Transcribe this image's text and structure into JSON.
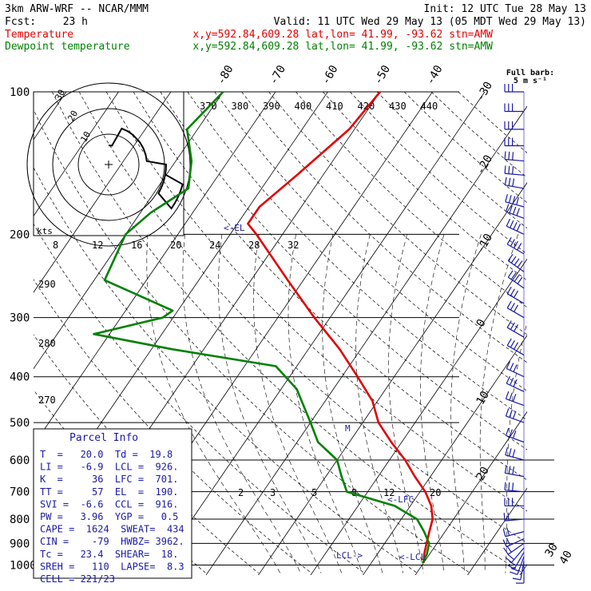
{
  "header": {
    "model": "3km ARW-WRF -- NCAR/MMM",
    "init": "Init: 12 UTC Tue 28 May 13",
    "fcst_label": "Fcst:",
    "fcst_hours": "23 h",
    "valid": "Valid: 11 UTC Wed 29 May 13 (05 MDT Wed 29 May 13)",
    "temp_name": "Temperature",
    "temp_loc": "x,y=592.84,609.28   lat,lon= 41.99, -93.62  stn=AMW",
    "dew_name": "Dewpoint temperature",
    "dew_loc": "x,y=592.84,609.28   lat,lon= 41.99, -93.62  stn=AMW"
  },
  "wind_key": {
    "title": "Full barb:",
    "value": "5 m s⁻¹"
  },
  "hodograph": {
    "units": "kts",
    "ring_labels": [
      "10",
      "20",
      "30"
    ]
  },
  "parcel_info": {
    "title": "Parcel Info",
    "rows": [
      "T  =   20.0  Td =  19.8",
      "LI =   -6.9  LCL =  926.",
      "K  =     36  LFC =  701.",
      "TT =     57  EL  =  190.",
      "SVI =  -6.6  CCL =  916.",
      "PW =   3.96  YGP =   0.5",
      "CAPE =  1624  SWEAT=  434",
      "CIN =    -79  HWBZ= 3962.",
      "Tc =   23.4  SHEAR=  18.",
      "SREH =   110  LAPSE=  8.3",
      "CELL = 221/23"
    ]
  },
  "annotations": {
    "el": "<-EL",
    "lfc": "<-LFC",
    "lcl_left": "LCL->",
    "lcl_right": "<-LCL",
    "m": "M"
  },
  "colors": {
    "temperature": "#e00000",
    "dewpoint": "#008000",
    "parcel": "#000000",
    "annotation": "#1a1aa6",
    "wind": "#1a1aa6"
  },
  "chart_data": {
    "type": "line",
    "title": "",
    "ylabel": "",
    "xlabel": "",
    "y_scale": "log-pressure (hPa)",
    "pressure_levels": [
      100,
      200,
      300,
      400,
      500,
      600,
      700,
      800,
      900,
      1000
    ],
    "temperature_ticks": [
      -80,
      -70,
      -60,
      -50,
      -40,
      -30,
      -20,
      -10,
      0,
      10,
      20,
      30,
      40
    ],
    "theta_ticks": [
      370,
      380,
      390,
      400,
      410,
      420,
      430,
      440
    ],
    "theta_e_ticks": [
      8,
      12,
      16,
      20,
      24,
      28,
      32
    ],
    "theta_e_diag_ticks": [
      290,
      280,
      270
    ],
    "mixing_ratio_ticks": [
      2,
      3,
      5,
      8,
      12,
      20
    ],
    "series": [
      {
        "name": "Temperature",
        "values": [
          [
            100,
            -50
          ],
          [
            120,
            -51
          ],
          [
            150,
            -55
          ],
          [
            175,
            -58
          ],
          [
            190,
            -58
          ],
          [
            200,
            -55
          ],
          [
            250,
            -43
          ],
          [
            300,
            -33
          ],
          [
            350,
            -24
          ],
          [
            400,
            -17
          ],
          [
            450,
            -11
          ],
          [
            500,
            -7
          ],
          [
            550,
            -2
          ],
          [
            600,
            3
          ],
          [
            650,
            7
          ],
          [
            700,
            11
          ],
          [
            750,
            14
          ],
          [
            800,
            16
          ],
          [
            850,
            17
          ],
          [
            900,
            18
          ],
          [
            950,
            19
          ],
          [
            990,
            20
          ]
        ]
      },
      {
        "name": "Dewpoint temperature",
        "values": [
          [
            100,
            -80
          ],
          [
            120,
            -82
          ],
          [
            140,
            -77
          ],
          [
            160,
            -74
          ],
          [
            180,
            -78
          ],
          [
            200,
            -80
          ],
          [
            250,
            -78
          ],
          [
            290,
            -61
          ],
          [
            300,
            -62
          ],
          [
            325,
            -73
          ],
          [
            350,
            -56
          ],
          [
            380,
            -34
          ],
          [
            425,
            -27
          ],
          [
            500,
            -20
          ],
          [
            550,
            -16
          ],
          [
            600,
            -10
          ],
          [
            650,
            -7
          ],
          [
            700,
            -4
          ],
          [
            750,
            7
          ],
          [
            800,
            13
          ],
          [
            850,
            16
          ],
          [
            900,
            18.5
          ],
          [
            950,
            19.5
          ],
          [
            990,
            19.8
          ]
        ]
      }
    ],
    "parcel_trace": [
      [
        990,
        20
      ],
      [
        926,
        19
      ],
      [
        850,
        18
      ],
      [
        780,
        16
      ],
      [
        701,
        14
      ]
    ],
    "wind_barbs": [
      {
        "p": 100,
        "dir": 270,
        "spd": 15
      },
      {
        "p": 110,
        "dir": 270,
        "spd": 15
      },
      {
        "p": 120,
        "dir": 270,
        "spd": 15
      },
      {
        "p": 130,
        "dir": 270,
        "spd": 15
      },
      {
        "p": 140,
        "dir": 275,
        "spd": 15
      },
      {
        "p": 150,
        "dir": 275,
        "spd": 15
      },
      {
        "p": 160,
        "dir": 280,
        "spd": 15
      },
      {
        "p": 175,
        "dir": 285,
        "spd": 20
      },
      {
        "p": 185,
        "dir": 290,
        "spd": 20
      },
      {
        "p": 200,
        "dir": 295,
        "spd": 20
      },
      {
        "p": 220,
        "dir": 300,
        "spd": 20
      },
      {
        "p": 240,
        "dir": 305,
        "spd": 20
      },
      {
        "p": 260,
        "dir": 305,
        "spd": 20
      },
      {
        "p": 280,
        "dir": 300,
        "spd": 15
      },
      {
        "p": 300,
        "dir": 300,
        "spd": 15
      },
      {
        "p": 330,
        "dir": 300,
        "spd": 15
      },
      {
        "p": 360,
        "dir": 300,
        "spd": 15
      },
      {
        "p": 400,
        "dir": 295,
        "spd": 15
      },
      {
        "p": 430,
        "dir": 295,
        "spd": 15
      },
      {
        "p": 460,
        "dir": 290,
        "spd": 15
      },
      {
        "p": 500,
        "dir": 290,
        "spd": 15
      },
      {
        "p": 550,
        "dir": 290,
        "spd": 15
      },
      {
        "p": 600,
        "dir": 285,
        "spd": 15
      },
      {
        "p": 650,
        "dir": 280,
        "spd": 15
      },
      {
        "p": 700,
        "dir": 275,
        "spd": 15
      },
      {
        "p": 750,
        "dir": 270,
        "spd": 15
      },
      {
        "p": 800,
        "dir": 265,
        "spd": 10
      },
      {
        "p": 850,
        "dir": 255,
        "spd": 10
      },
      {
        "p": 880,
        "dir": 245,
        "spd": 10
      },
      {
        "p": 900,
        "dir": 235,
        "spd": 10
      },
      {
        "p": 920,
        "dir": 220,
        "spd": 10
      },
      {
        "p": 940,
        "dir": 210,
        "spd": 10
      },
      {
        "p": 960,
        "dir": 200,
        "spd": 10
      },
      {
        "p": 980,
        "dir": 190,
        "spd": 5
      },
      {
        "p": 995,
        "dir": 180,
        "spd": 5
      }
    ]
  }
}
